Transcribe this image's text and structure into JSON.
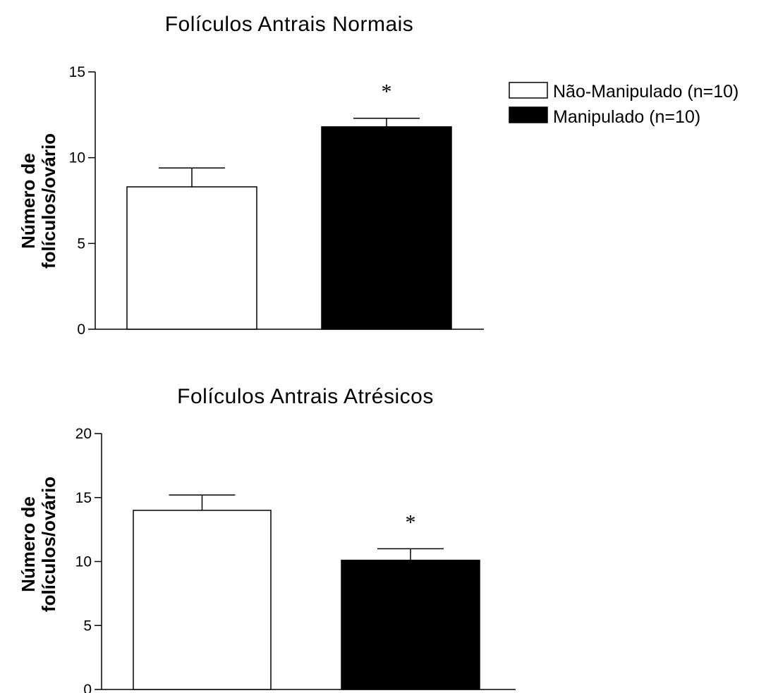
{
  "legend": {
    "entries": [
      {
        "label": "Não-Manipulado (n=10)",
        "color": "#ffffff"
      },
      {
        "label": "Manipulado (n=10)",
        "color": "#000000"
      }
    ]
  },
  "chart_data": [
    {
      "type": "bar",
      "title": "Folículos Antrais Normais",
      "ylabel_lines": [
        "Número de",
        "folículos/ovário"
      ],
      "ylim": [
        0,
        15
      ],
      "yticks": [
        0,
        5,
        10,
        15
      ],
      "categories": [
        "Não-Manipulado (n=10)",
        "Manipulado (n=10)"
      ],
      "values": [
        8.3,
        11.8
      ],
      "errors": [
        1.1,
        0.5
      ],
      "colors": [
        "#ffffff",
        "#000000"
      ],
      "annotations": [
        "",
        "*"
      ],
      "grid": false
    },
    {
      "type": "bar",
      "title": "Folículos Antrais Atrésicos",
      "ylabel_lines": [
        "Número de",
        "folículos/ovário"
      ],
      "ylim": [
        0,
        20
      ],
      "yticks": [
        0,
        5,
        10,
        15,
        20
      ],
      "categories": [
        "Não-Manipulado (n=10)",
        "Manipulado (n=10)"
      ],
      "values": [
        14.0,
        10.1
      ],
      "errors": [
        1.2,
        0.9
      ],
      "colors": [
        "#ffffff",
        "#000000"
      ],
      "annotations": [
        "",
        "*"
      ],
      "grid": false
    }
  ]
}
